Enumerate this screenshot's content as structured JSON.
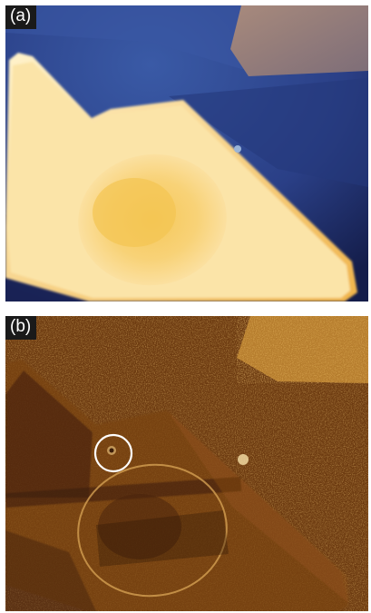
{
  "panels": [
    {
      "label": "(a)"
    },
    {
      "label": "(b)"
    }
  ],
  "colors": {
    "substrate_blue": "#2c4690",
    "flake_cream": "#fbe6a8",
    "flake_yellow": "#f4cb62",
    "contrast_brown": "#6e3c12",
    "contrast_gold": "#c88a2e",
    "marker_circle": "#ffffff"
  }
}
